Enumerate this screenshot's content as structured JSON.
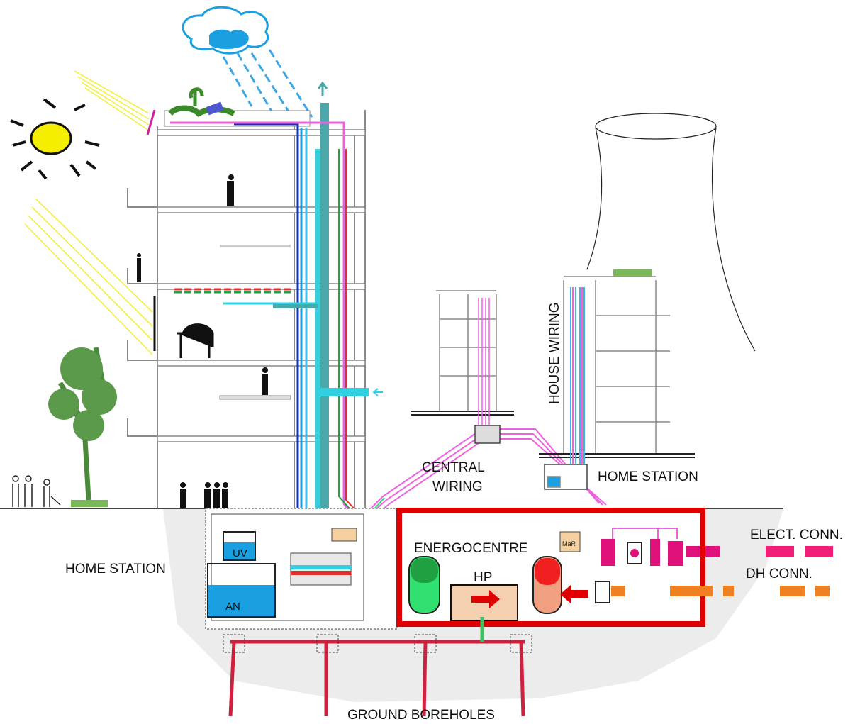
{
  "diagram": {
    "labels": {
      "house_wiring": "HOUSE WIRING",
      "central_wiring": [
        "CENTRAL",
        "WIRING"
      ],
      "home_station_left": "HOME STATION",
      "home_station_right": "HOME STATION",
      "energocentre": "ENERGOCENTRE",
      "hp": "HP",
      "uv": "UV",
      "an": "AN",
      "mar": "MaR",
      "elect_conn": "ELECT. CONN.",
      "dh_conn": "DH CONN.",
      "ground_boreholes": "GROUND BOREHOLES"
    }
  }
}
